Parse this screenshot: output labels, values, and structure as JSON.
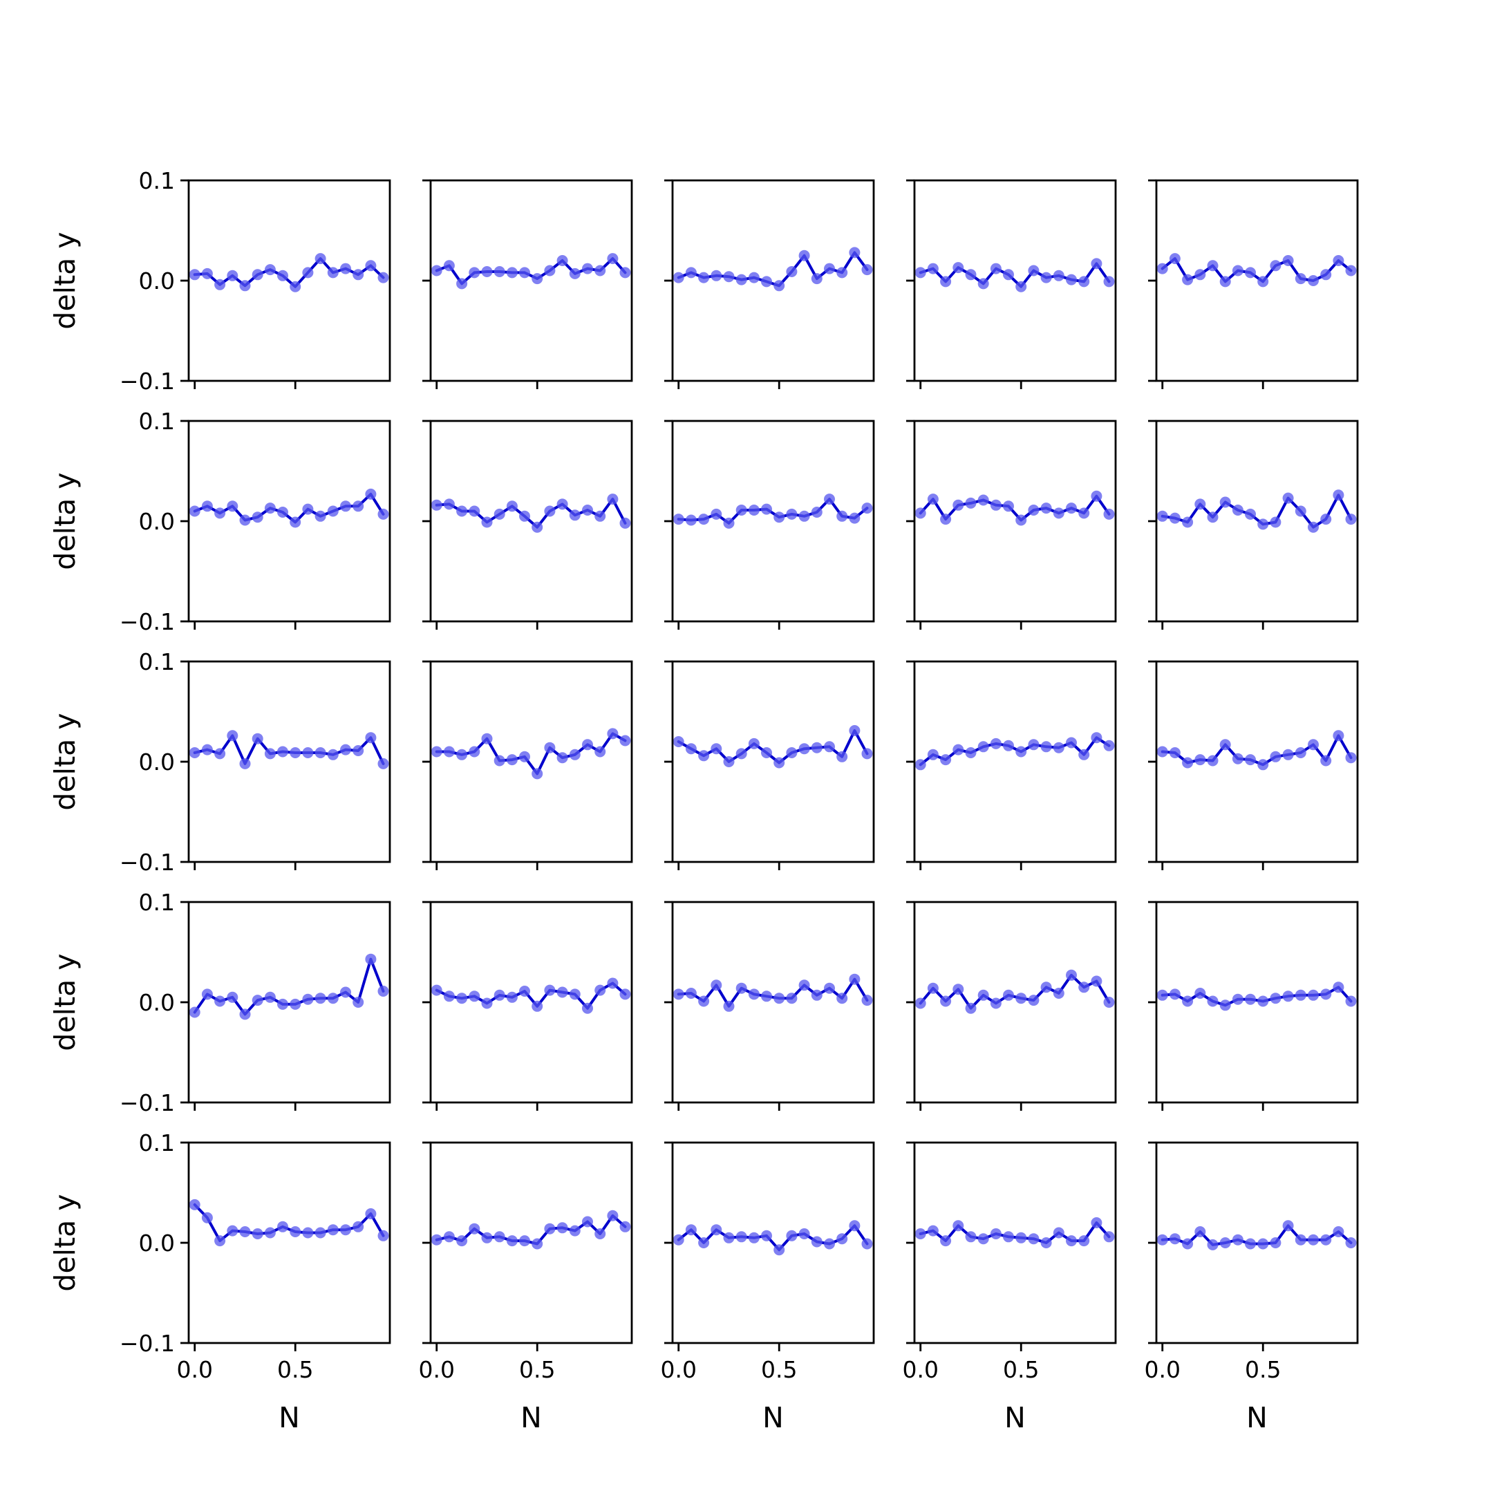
{
  "chart_data": {
    "type": "line",
    "layout": {
      "rows": 5,
      "cols": 5
    },
    "xlabel": "N",
    "ylabel": "delta y",
    "ylim": [
      -0.1,
      0.1
    ],
    "xlim": [
      -0.03,
      0.97
    ],
    "yticks": [
      -0.1,
      0.0,
      0.1
    ],
    "ytick_labels": [
      "−0.1",
      "0.0",
      "0.1"
    ],
    "xticks": [
      0.0,
      0.5
    ],
    "xtick_labels": [
      "0.0",
      "0.5"
    ],
    "x": [
      0.0,
      0.0625,
      0.125,
      0.1875,
      0.25,
      0.3125,
      0.375,
      0.4375,
      0.5,
      0.5625,
      0.625,
      0.6875,
      0.75,
      0.8125,
      0.875,
      0.9375
    ],
    "colors": {
      "line": "#0000cc",
      "marker": "#5555ee"
    },
    "panels": [
      {
        "values": [
          0.006,
          0.007,
          -0.004,
          0.005,
          -0.005,
          0.006,
          0.011,
          0.005,
          -0.006,
          0.008,
          0.022,
          0.008,
          0.012,
          0.006,
          0.015,
          0.003
        ]
      },
      {
        "values": [
          0.01,
          0.015,
          -0.003,
          0.008,
          0.009,
          0.009,
          0.008,
          0.008,
          0.002,
          0.01,
          0.02,
          0.007,
          0.012,
          0.01,
          0.022,
          0.008
        ]
      },
      {
        "values": [
          0.003,
          0.008,
          0.003,
          0.005,
          0.004,
          0.001,
          0.003,
          -0.001,
          -0.005,
          0.009,
          0.025,
          0.002,
          0.012,
          0.008,
          0.028,
          0.011
        ]
      },
      {
        "values": [
          0.008,
          0.012,
          -0.001,
          0.013,
          0.006,
          -0.003,
          0.012,
          0.006,
          -0.006,
          0.01,
          0.003,
          0.005,
          0.001,
          -0.001,
          0.017,
          -0.001
        ]
      },
      {
        "values": [
          0.012,
          0.022,
          0.001,
          0.006,
          0.015,
          -0.001,
          0.01,
          0.008,
          -0.001,
          0.015,
          0.02,
          0.002,
          0.0,
          0.006,
          0.02,
          0.01
        ]
      },
      {
        "values": [
          0.01,
          0.015,
          0.008,
          0.015,
          0.001,
          0.004,
          0.013,
          0.009,
          -0.001,
          0.012,
          0.005,
          0.01,
          0.015,
          0.015,
          0.027,
          0.007
        ]
      },
      {
        "values": [
          0.016,
          0.017,
          0.01,
          0.01,
          -0.001,
          0.007,
          0.015,
          0.005,
          -0.006,
          0.01,
          0.017,
          0.006,
          0.011,
          0.005,
          0.022,
          -0.002
        ]
      },
      {
        "values": [
          0.002,
          0.001,
          0.002,
          0.007,
          -0.002,
          0.011,
          0.011,
          0.012,
          0.004,
          0.007,
          0.005,
          0.009,
          0.022,
          0.005,
          0.003,
          0.013
        ]
      },
      {
        "values": [
          0.008,
          0.022,
          0.002,
          0.016,
          0.018,
          0.021,
          0.016,
          0.015,
          0.001,
          0.011,
          0.013,
          0.008,
          0.013,
          0.008,
          0.025,
          0.007
        ]
      },
      {
        "values": [
          0.005,
          0.003,
          -0.001,
          0.017,
          0.004,
          0.019,
          0.011,
          0.007,
          -0.003,
          -0.001,
          0.023,
          0.01,
          -0.006,
          0.002,
          0.026,
          0.002
        ]
      },
      {
        "values": [
          0.009,
          0.012,
          0.008,
          0.026,
          -0.002,
          0.023,
          0.008,
          0.01,
          0.009,
          0.009,
          0.009,
          0.007,
          0.012,
          0.011,
          0.024,
          -0.002
        ]
      },
      {
        "values": [
          0.01,
          0.01,
          0.007,
          0.01,
          0.023,
          0.001,
          0.002,
          0.005,
          -0.012,
          0.014,
          0.004,
          0.007,
          0.017,
          0.01,
          0.028,
          0.021
        ]
      },
      {
        "values": [
          0.02,
          0.013,
          0.006,
          0.013,
          0.0,
          0.008,
          0.018,
          0.009,
          -0.001,
          0.009,
          0.013,
          0.014,
          0.015,
          0.005,
          0.031,
          0.008
        ]
      },
      {
        "values": [
          -0.003,
          0.007,
          0.002,
          0.012,
          0.009,
          0.015,
          0.018,
          0.016,
          0.01,
          0.017,
          0.015,
          0.014,
          0.019,
          0.007,
          0.024,
          0.016
        ]
      },
      {
        "values": [
          0.01,
          0.009,
          -0.001,
          0.002,
          0.001,
          0.017,
          0.003,
          0.002,
          -0.003,
          0.005,
          0.007,
          0.009,
          0.017,
          0.001,
          0.026,
          0.004
        ]
      },
      {
        "values": [
          -0.01,
          0.008,
          0.001,
          0.005,
          -0.012,
          0.002,
          0.005,
          -0.002,
          -0.002,
          0.003,
          0.004,
          0.004,
          0.01,
          0.0,
          0.043,
          0.011
        ]
      },
      {
        "values": [
          0.012,
          0.006,
          0.004,
          0.006,
          -0.001,
          0.007,
          0.005,
          0.011,
          -0.004,
          0.012,
          0.01,
          0.008,
          -0.006,
          0.012,
          0.019,
          0.008
        ]
      },
      {
        "values": [
          0.008,
          0.009,
          0.001,
          0.017,
          -0.004,
          0.014,
          0.008,
          0.006,
          0.004,
          0.004,
          0.017,
          0.007,
          0.014,
          0.004,
          0.023,
          0.002
        ]
      },
      {
        "values": [
          -0.001,
          0.014,
          0.001,
          0.013,
          -0.006,
          0.007,
          -0.001,
          0.007,
          0.004,
          0.002,
          0.015,
          0.009,
          0.027,
          0.015,
          0.021,
          0.0
        ]
      },
      {
        "values": [
          0.007,
          0.008,
          0.001,
          0.009,
          0.001,
          -0.003,
          0.003,
          0.003,
          0.001,
          0.004,
          0.006,
          0.007,
          0.007,
          0.008,
          0.015,
          0.001
        ]
      },
      {
        "values": [
          0.038,
          0.025,
          0.002,
          0.012,
          0.011,
          0.009,
          0.01,
          0.016,
          0.011,
          0.01,
          0.01,
          0.013,
          0.013,
          0.016,
          0.029,
          0.007
        ]
      },
      {
        "values": [
          0.003,
          0.006,
          0.002,
          0.014,
          0.005,
          0.006,
          0.002,
          0.002,
          -0.001,
          0.014,
          0.015,
          0.012,
          0.021,
          0.009,
          0.027,
          0.016
        ]
      },
      {
        "values": [
          0.003,
          0.013,
          0.0,
          0.013,
          0.005,
          0.006,
          0.005,
          0.007,
          -0.007,
          0.007,
          0.009,
          0.001,
          -0.001,
          0.004,
          0.017,
          -0.001
        ]
      },
      {
        "values": [
          0.009,
          0.012,
          0.002,
          0.017,
          0.006,
          0.004,
          0.009,
          0.006,
          0.005,
          0.004,
          0.0,
          0.01,
          0.002,
          0.002,
          0.02,
          0.006
        ]
      },
      {
        "values": [
          0.003,
          0.004,
          -0.001,
          0.011,
          -0.002,
          0.0,
          0.003,
          -0.001,
          -0.001,
          0.0,
          0.017,
          0.003,
          0.003,
          0.003,
          0.011,
          0.0
        ]
      }
    ]
  }
}
